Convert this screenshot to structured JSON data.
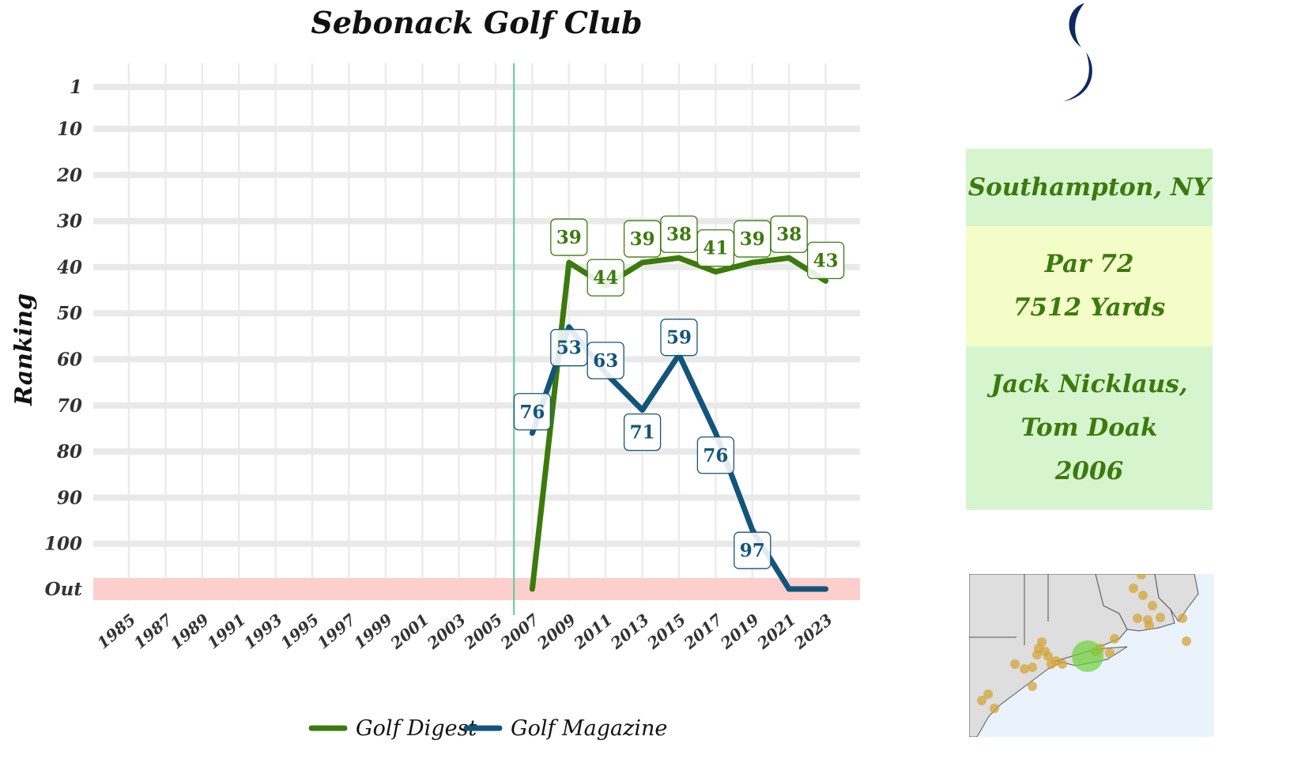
{
  "chart_data": {
    "type": "line",
    "title": "Sebonack Golf Club",
    "xlabel": "",
    "ylabel": "Ranking",
    "x_ticks": [
      "1985",
      "1987",
      "1989",
      "1991",
      "1993",
      "1995",
      "1997",
      "1999",
      "2001",
      "2003",
      "2005",
      "2007",
      "2009",
      "2011",
      "2013",
      "2015",
      "2017",
      "2019",
      "2021",
      "2023"
    ],
    "y_ticks": [
      "1",
      "10",
      "20",
      "30",
      "40",
      "50",
      "60",
      "70",
      "80",
      "90",
      "100",
      "Out"
    ],
    "y_reversed": true,
    "grid": true,
    "legend_position": "bottom",
    "reference_line_year": 2006,
    "out_band_label": "Out",
    "series": [
      {
        "name": "Golf Digest",
        "color": "#3b7a0c",
        "points": [
          {
            "x": 2007,
            "y": "Out"
          },
          {
            "x": 2009,
            "y": 39
          },
          {
            "x": 2011,
            "y": 44
          },
          {
            "x": 2013,
            "y": 39
          },
          {
            "x": 2015,
            "y": 38
          },
          {
            "x": 2017,
            "y": 41
          },
          {
            "x": 2019,
            "y": 39
          },
          {
            "x": 2021,
            "y": 38
          },
          {
            "x": 2023,
            "y": 43
          }
        ]
      },
      {
        "name": "Golf Magazine",
        "color": "#13557a",
        "points": [
          {
            "x": 2007,
            "y": 76
          },
          {
            "x": 2009,
            "y": 53
          },
          {
            "x": 2011,
            "y": 63
          },
          {
            "x": 2013,
            "y": 71
          },
          {
            "x": 2015,
            "y": 59
          },
          {
            "x": 2017,
            "y": 76
          },
          {
            "x": 2019,
            "y": 97
          },
          {
            "x": 2021,
            "y": "Out"
          },
          {
            "x": 2023,
            "y": "Out"
          }
        ]
      }
    ]
  },
  "info": {
    "location": "Southampton, NY",
    "par": "Par 72",
    "yards": "7512 Yards",
    "architect_1": "Jack Nicklaus,",
    "architect_2": "Tom Doak",
    "year": "2006"
  },
  "colors": {
    "digest": "#3b7a0c",
    "magazine": "#13557a",
    "out_band": "#fccfcc",
    "vline": "#5ec9a0",
    "logo": "#0e2a5e"
  }
}
